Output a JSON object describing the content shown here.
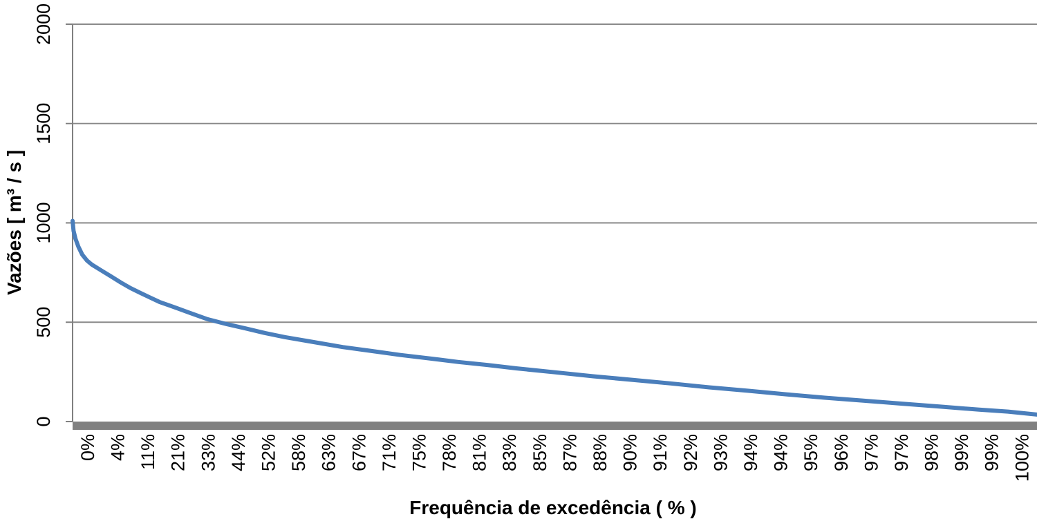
{
  "chart_data": {
    "type": "line",
    "title": "",
    "xlabel": "Frequência de excedência ( % )",
    "ylabel": "Vazões [ m³ / s ]",
    "ylim": [
      0,
      2000
    ],
    "yticks": [
      0,
      500,
      1000,
      1500,
      2000
    ],
    "xtick_labels": [
      "0%",
      "4%",
      "11%",
      "21%",
      "33%",
      "44%",
      "52%",
      "58%",
      "63%",
      "67%",
      "71%",
      "75%",
      "78%",
      "81%",
      "83%",
      "85%",
      "87%",
      "88%",
      "90%",
      "91%",
      "92%",
      "93%",
      "94%",
      "94%",
      "95%",
      "96%",
      "97%",
      "97%",
      "98%",
      "99%",
      "99%",
      "100%"
    ],
    "grid": true,
    "legend": "none",
    "line_color": "#4a7ebb",
    "series": [
      {
        "x_position_fraction": [
          0.0,
          0.001,
          0.003,
          0.006,
          0.01,
          0.015,
          0.02,
          0.03,
          0.04,
          0.05,
          0.06,
          0.07,
          0.08,
          0.09,
          0.1,
          0.12,
          0.14,
          0.16,
          0.18,
          0.2,
          0.22,
          0.25,
          0.28,
          0.31,
          0.34,
          0.37,
          0.4,
          0.43,
          0.46,
          0.5,
          0.54,
          0.58,
          0.62,
          0.66,
          0.7,
          0.74,
          0.78,
          0.82,
          0.86,
          0.9,
          0.94,
          0.97,
          1.0
        ],
        "values": [
          1010,
          960,
          920,
          880,
          840,
          810,
          790,
          760,
          730,
          700,
          672,
          648,
          625,
          602,
          585,
          550,
          515,
          490,
          468,
          445,
          425,
          400,
          375,
          355,
          335,
          318,
          300,
          285,
          268,
          248,
          228,
          210,
          192,
          172,
          155,
          137,
          120,
          105,
          90,
          75,
          60,
          50,
          35
        ]
      }
    ]
  }
}
